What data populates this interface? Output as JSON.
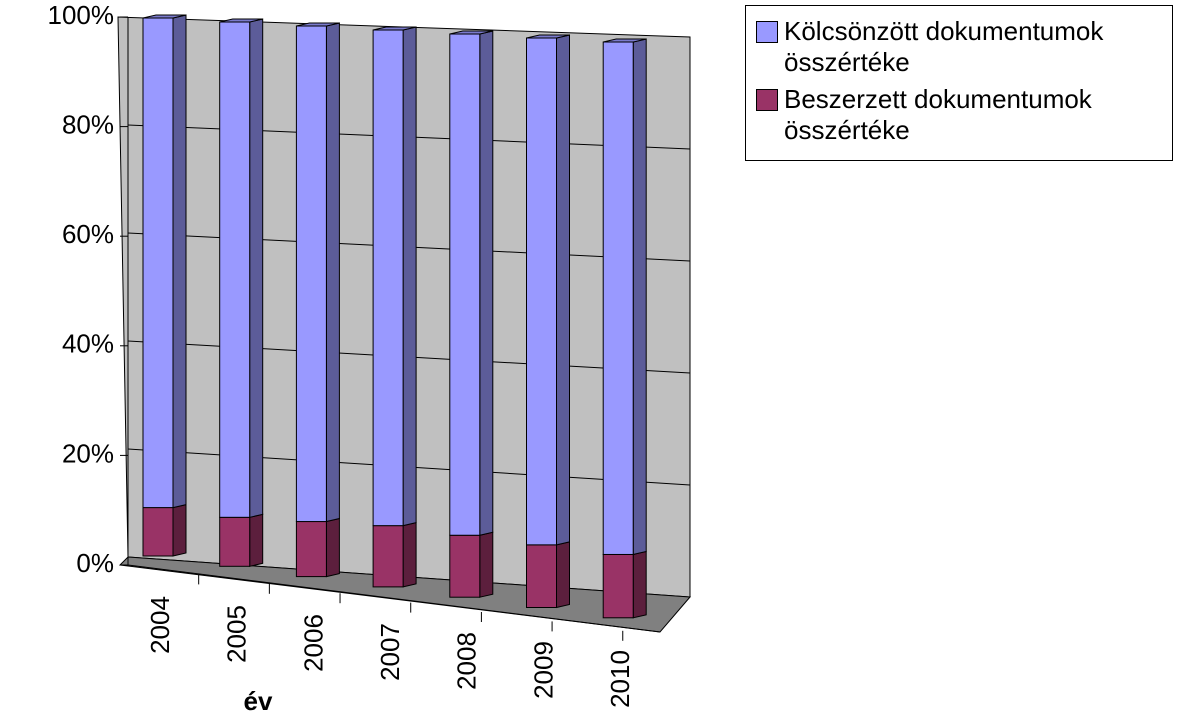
{
  "chart_data": {
    "type": "bar3d_stacked",
    "categories": [
      "2004",
      "2005",
      "2006",
      "2007",
      "2008",
      "2009",
      "2010"
    ],
    "series": [
      {
        "name": "Beszerzett dokumentumok összértéke",
        "color": "#993366",
        "values": [
          9,
          9,
          10,
          11,
          11,
          11,
          11
        ]
      },
      {
        "name": "Kölcsönzött dokumentumok összértéke",
        "color": "#9999ff",
        "values": [
          91,
          91,
          90,
          89,
          89,
          89,
          89
        ]
      }
    ],
    "xlabel": "év",
    "ylim": [
      0,
      100
    ],
    "yticks": [
      {
        "value": 0,
        "label": "0%"
      },
      {
        "value": 20,
        "label": "20%"
      },
      {
        "value": 40,
        "label": "40%"
      },
      {
        "value": 60,
        "label": "60%"
      },
      {
        "value": 80,
        "label": "80%"
      },
      {
        "value": 100,
        "label": "100%"
      }
    ],
    "grid": true,
    "legend": "top-right"
  }
}
